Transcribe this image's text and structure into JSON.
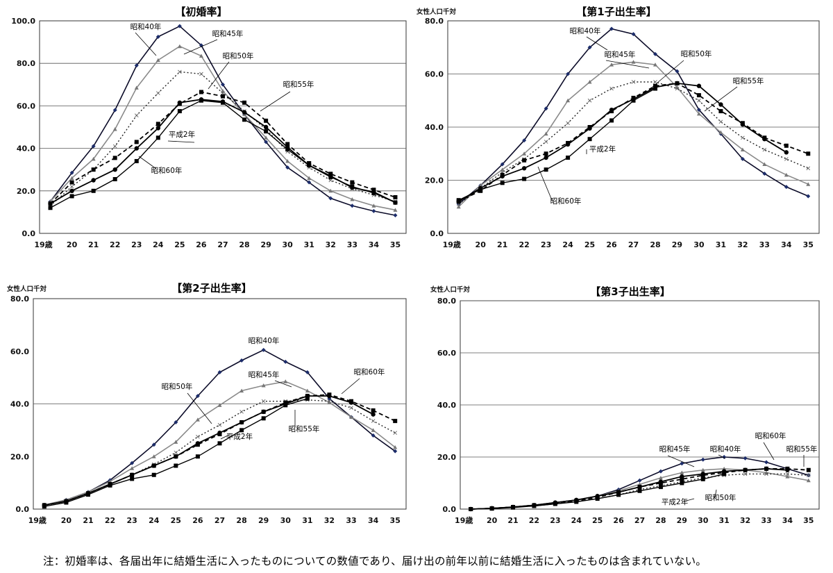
{
  "note": "注：初婚率は、各届出年に結婚生活に入ったものについての数値であり、届け出の前年以前に結婚生活に入ったものは含まれていない。",
  "chart_data": [
    {
      "type": "line",
      "title": "【初婚率】",
      "unit_label": "",
      "x": [
        "19歳",
        "20",
        "21",
        "22",
        "23",
        "24",
        "25",
        "26",
        "27",
        "28",
        "29",
        "30",
        "31",
        "32",
        "33",
        "34",
        "35"
      ],
      "ylim": [
        0,
        100
      ],
      "yticks": [
        "0.0",
        "20.0",
        "40.0",
        "60.0",
        "80.0",
        "100.0"
      ],
      "grid_lines": [
        20,
        40,
        60,
        80
      ],
      "series": [
        {
          "name": "昭和40年",
          "values": [
            15,
            28.5,
            41,
            58,
            79,
            92.5,
            97.5,
            88.5,
            70,
            56,
            43,
            31,
            24,
            16.5,
            13,
            10.5,
            8.5
          ],
          "color": "#0b0b28",
          "width": 1.6,
          "dash": "",
          "marker": "diamond"
        },
        {
          "name": "昭和45年",
          "values": [
            15,
            26,
            35,
            49,
            68.5,
            81.5,
            88,
            83.5,
            67,
            56,
            45,
            34,
            26,
            20,
            16,
            13,
            11
          ],
          "color": "#8a8a8a",
          "width": 1.6,
          "dash": "",
          "marker": "tri"
        },
        {
          "name": "昭和50年",
          "values": [
            13,
            22,
            30,
            41,
            55.5,
            66,
            76,
            75,
            66,
            57.5,
            49,
            38.5,
            31,
            25,
            21,
            18,
            15
          ],
          "color": "#222222",
          "width": 1.4,
          "dash": "2,3",
          "marker": "x"
        },
        {
          "name": "昭和55年",
          "values": [
            14,
            24,
            30,
            35.5,
            43,
            51.5,
            61,
            66.5,
            64.5,
            61.5,
            53,
            42,
            33,
            28,
            24,
            20.5,
            17
          ],
          "color": "#000000",
          "width": 1.8,
          "dash": "6,4",
          "marker": "square"
        },
        {
          "name": "昭和60年",
          "values": [
            14,
            20,
            25,
            30,
            40,
            49.5,
            61.5,
            63,
            62,
            57,
            50,
            40.5,
            32,
            27,
            21.5,
            19.5,
            14.5
          ],
          "color": "#000000",
          "width": 1.8,
          "dash": "",
          "marker": "circle"
        },
        {
          "name": "平成2年",
          "values": [
            12,
            17.5,
            20,
            25.5,
            34,
            45,
            57.5,
            62.5,
            61.5,
            53.5,
            48,
            39.5,
            32,
            26.5,
            22,
            19,
            14.5
          ],
          "color": "#000000",
          "width": 1.4,
          "dash": "",
          "marker": "square"
        }
      ],
      "labels": [
        "昭和40年",
        "昭和45年",
        "昭和50年",
        "昭和55年",
        "平成2年",
        "昭和60年"
      ]
    },
    {
      "type": "line",
      "title": "【第1子出生率】",
      "unit_label": "女性人口千対",
      "x": [
        "19歳",
        "20",
        "21",
        "22",
        "23",
        "24",
        "25",
        "26",
        "27",
        "28",
        "29",
        "30",
        "31",
        "32",
        "33",
        "34",
        "35"
      ],
      "ylim": [
        0,
        80
      ],
      "yticks": [
        "0.0",
        "20.0",
        "40.0",
        "60.0",
        "80.0"
      ],
      "grid_lines": [
        20,
        40,
        60
      ],
      "series": [
        {
          "name": "昭和40年",
          "values": [
            11,
            18,
            26,
            35,
            47,
            60,
            70,
            77,
            75,
            67.5,
            61,
            46.5,
            37.5,
            28,
            22.5,
            17.5,
            14
          ],
          "color": "#0b0b28",
          "width": 1.6,
          "dash": "",
          "marker": "diamond"
        },
        {
          "name": "昭和45年",
          "values": [
            10,
            18,
            24,
            30,
            37.5,
            50,
            57,
            63.5,
            64.5,
            63.5,
            55,
            45,
            38,
            31.5,
            26,
            22,
            18.5
          ],
          "color": "#8a8a8a",
          "width": 1.6,
          "dash": "",
          "marker": "tri"
        },
        {
          "name": "昭和50年",
          "values": [
            11,
            17,
            23,
            28,
            34.5,
            41.5,
            50,
            54.5,
            57,
            57,
            54.5,
            50,
            42,
            36,
            31.5,
            28,
            24.5
          ],
          "color": "#222222",
          "width": 1.4,
          "dash": "2,3",
          "marker": "x"
        },
        {
          "name": "昭和55年",
          "values": [
            12,
            16,
            22,
            27.5,
            30,
            34,
            40,
            46,
            51,
            55.5,
            56.5,
            52,
            46,
            41.5,
            36,
            33,
            30
          ],
          "color": "#000000",
          "width": 1.8,
          "dash": "6,4",
          "marker": "square"
        },
        {
          "name": "昭和60年",
          "values": [
            12,
            17,
            21.5,
            24.5,
            28.5,
            33.5,
            39.5,
            46.5,
            50.5,
            55,
            56.5,
            55.5,
            48.5,
            41,
            35.5,
            30.5,
            null
          ],
          "color": "#000000",
          "width": 1.8,
          "dash": "",
          "marker": "circle"
        },
        {
          "name": "平成2年",
          "values": [
            12.5,
            16.5,
            19,
            20.5,
            24,
            28.5,
            35.5,
            42.5,
            50,
            54.5,
            null,
            null,
            null,
            null,
            null,
            null,
            null
          ],
          "color": "#000000",
          "width": 1.4,
          "dash": "",
          "marker": "square"
        }
      ],
      "labels": [
        "昭和40年",
        "昭和45年",
        "昭和50年",
        "昭和55年",
        "平成2年",
        "昭和60年"
      ]
    },
    {
      "type": "line",
      "title": "【第2子出生率】",
      "unit_label": "女性人口千対",
      "x": [
        "19歳",
        "20",
        "21",
        "22",
        "23",
        "24",
        "25",
        "26",
        "27",
        "28",
        "29",
        "30",
        "31",
        "32",
        "33",
        "34",
        "35"
      ],
      "ylim": [
        0,
        80
      ],
      "yticks": [
        "0.0",
        "20.0",
        "40.0",
        "60.0",
        "80.0"
      ],
      "grid_lines": [
        40
      ],
      "series": [
        {
          "name": "昭和40年",
          "values": [
            1.5,
            3.5,
            6.5,
            11,
            17.5,
            24.5,
            33,
            43,
            52,
            56.5,
            60.5,
            56,
            52,
            42,
            35,
            28,
            22
          ],
          "color": "#0b0b28",
          "width": 1.6,
          "dash": "",
          "marker": "diamond"
        },
        {
          "name": "昭和45年",
          "values": [
            1.5,
            3.5,
            6.5,
            10.5,
            15.5,
            20,
            25.5,
            34,
            39.5,
            45,
            47,
            48.5,
            45,
            40.5,
            35,
            30,
            23.5
          ],
          "color": "#8a8a8a",
          "width": 1.6,
          "dash": "",
          "marker": "tri"
        },
        {
          "name": "昭和50年",
          "values": [
            1.5,
            3,
            6,
            9.5,
            13,
            17,
            21.5,
            27.5,
            32,
            37,
            41,
            41,
            41.5,
            41,
            38.5,
            33.5,
            29
          ],
          "color": "#222222",
          "width": 1.4,
          "dash": "2,3",
          "marker": "x"
        },
        {
          "name": "昭和55年",
          "values": [
            1.5,
            3,
            6,
            9.5,
            13,
            16.5,
            20,
            24.5,
            28.5,
            33,
            37,
            40.5,
            43,
            43.5,
            41,
            37.5,
            33.5
          ],
          "color": "#000000",
          "width": 1.8,
          "dash": "6,4",
          "marker": "square"
        },
        {
          "name": "昭和60年",
          "values": [
            1.5,
            3,
            6,
            9.5,
            13,
            16.5,
            20,
            25,
            29,
            33,
            37,
            40,
            43,
            43,
            40.5,
            36,
            null
          ],
          "color": "#000000",
          "width": 1.8,
          "dash": "",
          "marker": "circle"
        },
        {
          "name": "平成2年",
          "values": [
            1,
            2.5,
            5.5,
            9,
            11.5,
            13,
            16.5,
            20,
            25,
            30,
            34.5,
            39.5,
            42,
            null,
            null,
            null,
            null
          ],
          "color": "#000000",
          "width": 1.4,
          "dash": "",
          "marker": "square"
        }
      ],
      "labels": [
        "昭和40年",
        "昭和50年",
        "昭和45年",
        "昭和60年",
        "昭和55年",
        "平成2年"
      ]
    },
    {
      "type": "line",
      "title": "【第3子出生率】",
      "unit_label": "女性人口千対",
      "x": [
        "19歳",
        "20",
        "21",
        "22",
        "23",
        "24",
        "25",
        "26",
        "27",
        "28",
        "29",
        "30",
        "31",
        "32",
        "33",
        "34",
        "35"
      ],
      "ylim": [
        0,
        80
      ],
      "yticks": [
        "0.0",
        "20.0",
        "40.0",
        "60.0",
        "80.0"
      ],
      "grid_lines": [
        20,
        40,
        60,
        80
      ],
      "series": [
        {
          "name": "昭和40年",
          "values": [
            0,
            0.3,
            0.8,
            1.5,
            2.5,
            3.5,
            5,
            7.5,
            11,
            14.5,
            17.5,
            19,
            20,
            19.5,
            18,
            15.5,
            13
          ],
          "color": "#0b0b28",
          "width": 1.6,
          "dash": "",
          "marker": "diamond"
        },
        {
          "name": "昭和45年",
          "values": [
            0,
            0.3,
            0.8,
            1.5,
            2.5,
            3.5,
            5,
            7,
            9.5,
            12,
            14,
            15,
            15.5,
            15,
            14,
            12.5,
            11
          ],
          "color": "#8a8a8a",
          "width": 1.6,
          "dash": "",
          "marker": "tri"
        },
        {
          "name": "昭和50年",
          "values": [
            0,
            0.3,
            0.8,
            1.2,
            2,
            3,
            4,
            5.5,
            7.5,
            9,
            10.5,
            12,
            13,
            13.5,
            13.5,
            13.5,
            13
          ],
          "color": "#222222",
          "width": 1.4,
          "dash": "2,3",
          "marker": "x"
        },
        {
          "name": "昭和55年",
          "values": [
            0,
            0.3,
            0.8,
            1.5,
            2.2,
            3.2,
            4.5,
            6.5,
            8.5,
            10,
            11.5,
            13,
            14,
            15,
            15.5,
            15.5,
            15
          ],
          "color": "#000000",
          "width": 1.8,
          "dash": "6,4",
          "marker": "square"
        },
        {
          "name": "昭和60年",
          "values": [
            0,
            0.3,
            0.8,
            1.5,
            2.5,
            3.5,
            5,
            6.5,
            8.5,
            10.5,
            12.5,
            13.5,
            14.5,
            15,
            15.5,
            15,
            null
          ],
          "color": "#000000",
          "width": 1.8,
          "dash": "",
          "marker": "circle"
        },
        {
          "name": "平成2年",
          "values": [
            0,
            0.2,
            0.6,
            1.2,
            2,
            2.8,
            4,
            5.5,
            7,
            8.5,
            10,
            11.5,
            13.5,
            null,
            null,
            null,
            null
          ],
          "color": "#000000",
          "width": 1.4,
          "dash": "",
          "marker": "square"
        }
      ],
      "labels": [
        "昭和45年",
        "昭和40年",
        "昭和60年",
        "昭和55年",
        "平成2年",
        "昭和50年"
      ]
    }
  ]
}
